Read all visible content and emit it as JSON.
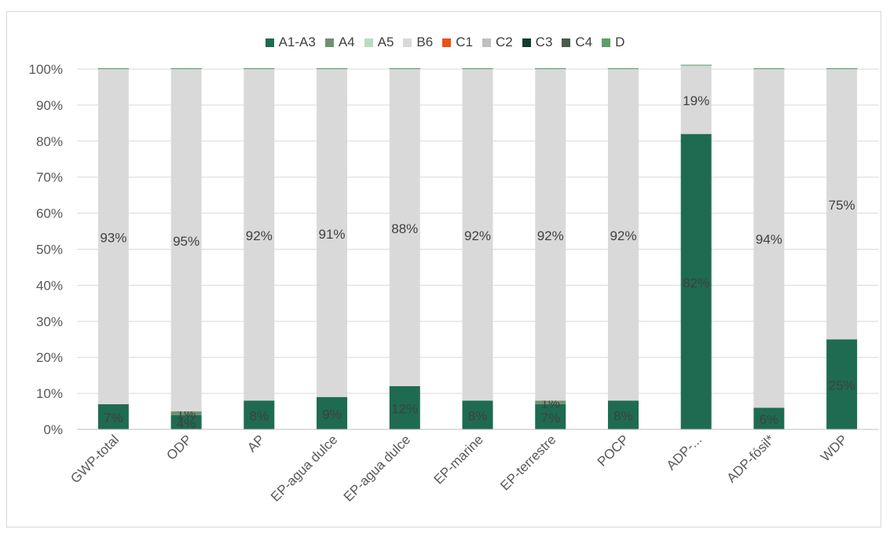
{
  "chart_data": {
    "type": "bar",
    "stacked": true,
    "categories": [
      "GWP-total",
      "ODP",
      "AP",
      "EP-agua dulce",
      "EP-agua dulce",
      "EP-marine",
      "EP-terrestre",
      "POCP",
      "ADP-...",
      "ADP-fósil*",
      "WDP"
    ],
    "ylim": [
      0,
      100
    ],
    "yticks": [
      "0%",
      "10%",
      "20%",
      "30%",
      "40%",
      "50%",
      "60%",
      "70%",
      "80%",
      "90%",
      "100%"
    ],
    "grid": true,
    "legend_position": "top",
    "series": [
      {
        "name": "A1-A3",
        "color": "#1e6b52",
        "values": [
          7,
          4,
          8,
          9,
          12,
          8,
          7,
          8,
          82,
          6,
          25
        ],
        "labels": [
          "7%",
          "4%",
          "8%",
          "9%",
          "12%",
          "8%",
          "7%",
          "8%",
          "82%",
          "6%",
          "25%"
        ]
      },
      {
        "name": "A4",
        "color": "#6e9173",
        "values": [
          0,
          1,
          0,
          0,
          0,
          0,
          1,
          0,
          0,
          0,
          0
        ],
        "labels": [
          "0%",
          "1%",
          "0%",
          "0%",
          "0%",
          "0%",
          "1%",
          "0%",
          "0%",
          "0%",
          "0%"
        ]
      },
      {
        "name": "A5",
        "color": "#b9dcc0",
        "values": [
          0,
          0,
          0,
          0,
          0,
          0,
          0,
          0,
          0,
          0,
          0
        ],
        "labels": [
          "0%",
          "0%",
          "0%",
          "0%",
          "0%",
          "0%",
          "0%",
          "0%",
          "0%",
          "0%",
          "0%"
        ]
      },
      {
        "name": "B6",
        "color": "#d9d9d9",
        "values": [
          93,
          95,
          92,
          91,
          88,
          92,
          92,
          92,
          19,
          94,
          75
        ],
        "labels": [
          "93%",
          "95%",
          "92%",
          "91%",
          "88%",
          "92%",
          "92%",
          "92%",
          "19%",
          "94%",
          "75%"
        ]
      },
      {
        "name": "C1",
        "color": "#e8511a",
        "values": [
          0,
          0,
          0,
          0,
          0,
          0,
          0,
          0,
          0,
          0,
          0
        ]
      },
      {
        "name": "C2",
        "color": "#bfbfbf",
        "values": [
          0,
          0,
          0,
          0,
          0,
          0,
          0,
          0,
          0,
          0,
          0
        ]
      },
      {
        "name": "C3",
        "color": "#123d2e",
        "values": [
          0,
          0,
          0,
          0,
          0,
          0,
          0,
          0,
          0,
          0,
          0
        ]
      },
      {
        "name": "C4",
        "color": "#4a5a4d",
        "values": [
          0,
          0,
          0,
          0,
          0,
          0,
          0,
          0,
          0,
          0,
          0
        ]
      },
      {
        "name": "D",
        "color": "#5e9e68",
        "values": [
          0,
          0,
          0,
          0,
          0,
          0,
          0,
          0,
          0,
          0,
          0
        ]
      }
    ]
  }
}
